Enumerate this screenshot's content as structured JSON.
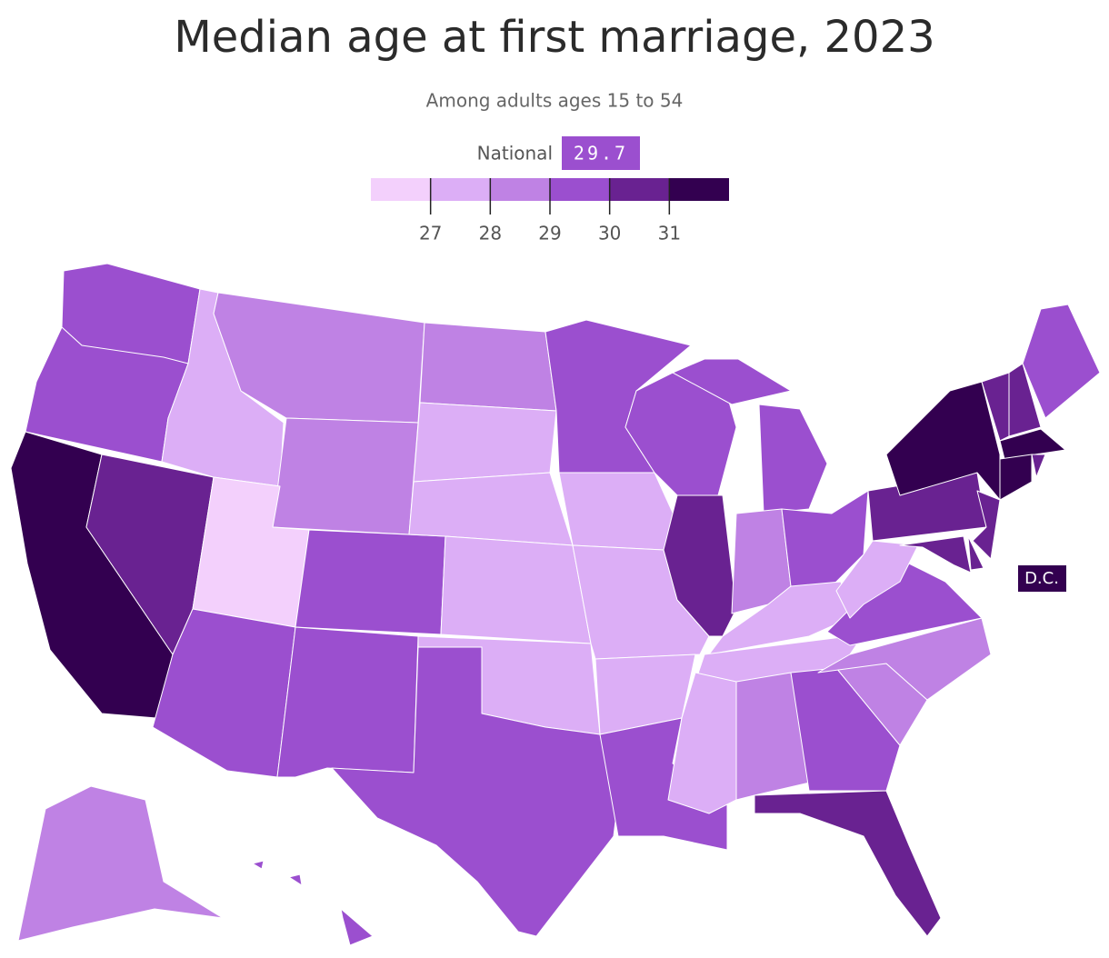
{
  "chart_data": {
    "type": "choropleth",
    "title": "Median age at first marriage, 2023",
    "subtitle": "Among adults ages 15 to 54",
    "national_label": "National",
    "national_value": 29.7,
    "colors": [
      "#f3d0fc",
      "#dcaef6",
      "#bf82e4",
      "#9b4fcf",
      "#692291",
      "#330050"
    ],
    "xlim": [
      26,
      32
    ],
    "xticks": [
      27,
      28,
      29,
      30,
      31
    ],
    "values": [
      29.5,
      29.5,
      31.5,
      30.5,
      27.5,
      28.5,
      28.5,
      26.5,
      29.5,
      29.5,
      29.5,
      28.5,
      27.5,
      27.5,
      27.5,
      27.5,
      29.5,
      29.5,
      27.5,
      27.5,
      27.5,
      29.5,
      29.5,
      30.5,
      29.5,
      28.5,
      29.5,
      27.5,
      27.5,
      27.5,
      28.5,
      29.5,
      30.5,
      28.5,
      28.5,
      29.5,
      27.5,
      30.5,
      31.5,
      30.5,
      30.5,
      30.5,
      30.5,
      30.5,
      29.5,
      31.5,
      31.5,
      30.5,
      28.5,
      29.5
    ],
    "dc_label": "D.C.",
    "dc_value": 31.5
  }
}
